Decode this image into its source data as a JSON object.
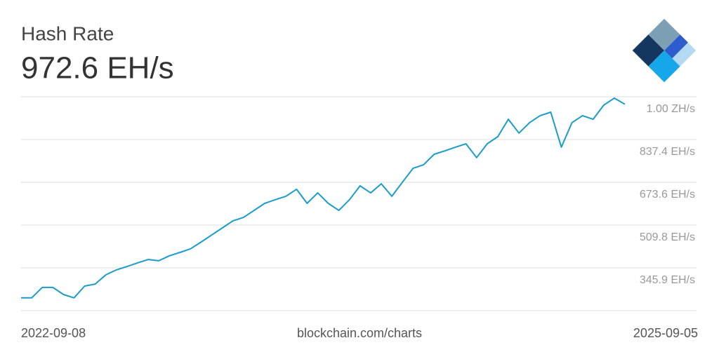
{
  "chart_data": {
    "type": "line",
    "title": "Hash Rate",
    "subtitle": "972.6 EH/s",
    "source": "blockchain.com/charts",
    "xlim": [
      "2022-09-08",
      "2025-09-05"
    ],
    "series": [
      {
        "name": "Hash Rate",
        "color": "#1a9cc9",
        "values": [
          231,
          231,
          271,
          271,
          244,
          231,
          276,
          284,
          319,
          338,
          351,
          365,
          378,
          373,
          392,
          405,
          419,
          445,
          472,
          499,
          526,
          539,
          566,
          593,
          607,
          620,
          647,
          593,
          633,
          593,
          566,
          607,
          660,
          633,
          668,
          620,
          674,
          727,
          741,
          781,
          794,
          808,
          821,
          768,
          821,
          848,
          915,
          862,
          902,
          929,
          942,
          808,
          902,
          929,
          915,
          969,
          996,
          972.6
        ]
      }
    ],
    "ylim": [
      182.1,
      1001.2
    ],
    "yticks": [
      {
        "value": 345.9,
        "label": "345.9 EH/s"
      },
      {
        "value": 509.8,
        "label": "509.8 EH/s"
      },
      {
        "value": 673.6,
        "label": "673.6 EH/s"
      },
      {
        "value": 837.4,
        "label": "837.4 EH/s"
      },
      {
        "value": 1001.2,
        "label": "1.00 ZH/s"
      }
    ],
    "grid": true
  }
}
